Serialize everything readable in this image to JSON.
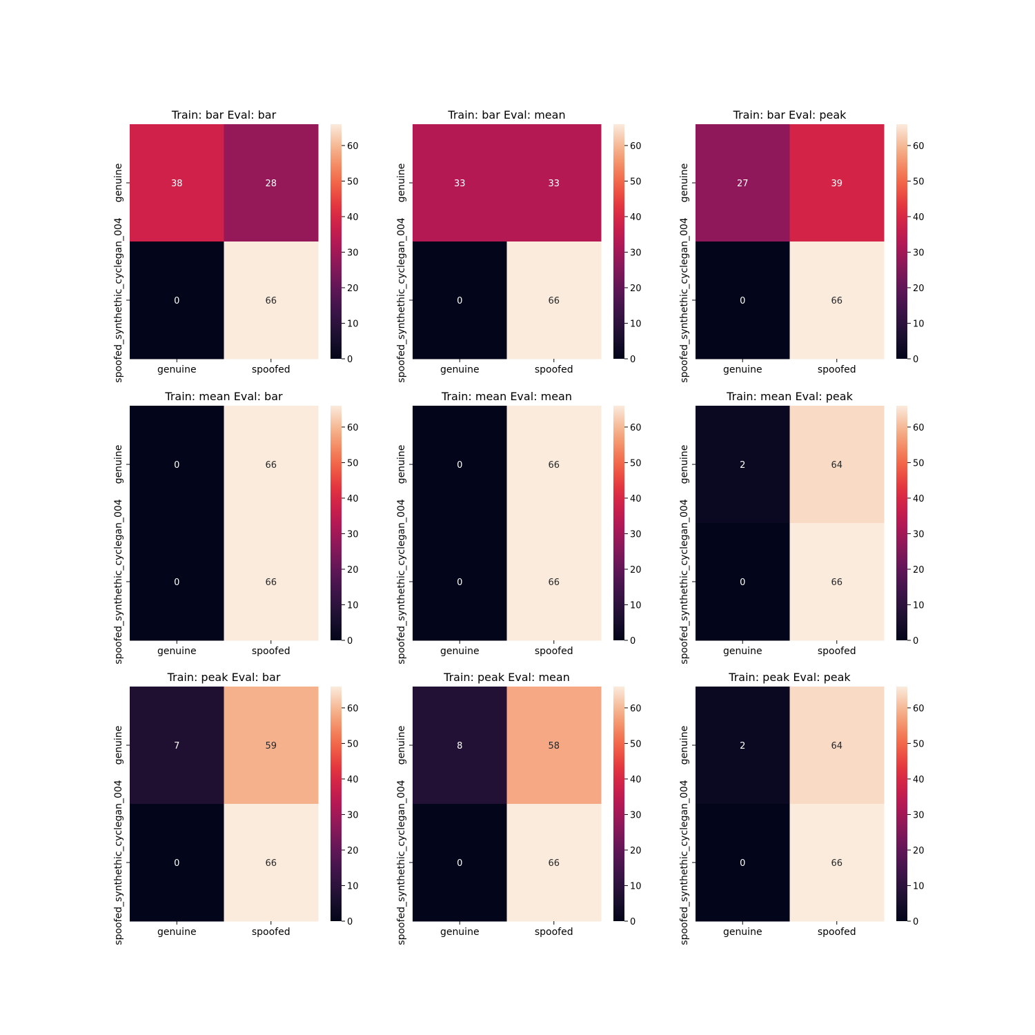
{
  "chart_data": [
    {
      "type": "heatmap",
      "title": "Train: bar Eval: bar",
      "x_tick_labels": [
        "genuine",
        "spoofed"
      ],
      "y_tick_labels": [
        "genuine",
        "spoofed_synthethic_cyclegan_004"
      ],
      "values": [
        [
          38,
          28
        ],
        [
          0,
          66
        ]
      ],
      "colorbar": {
        "min": 0,
        "max": 66,
        "ticks": [
          0,
          10,
          20,
          30,
          40,
          50,
          60
        ],
        "colormap": "rocket"
      }
    },
    {
      "type": "heatmap",
      "title": "Train: bar Eval: mean",
      "x_tick_labels": [
        "genuine",
        "spoofed"
      ],
      "y_tick_labels": [
        "genuine",
        "spoofed_synthethic_cyclegan_004"
      ],
      "values": [
        [
          33,
          33
        ],
        [
          0,
          66
        ]
      ],
      "colorbar": {
        "min": 0,
        "max": 66,
        "ticks": [
          0,
          10,
          20,
          30,
          40,
          50,
          60
        ],
        "colormap": "rocket"
      }
    },
    {
      "type": "heatmap",
      "title": "Train: bar Eval: peak",
      "x_tick_labels": [
        "genuine",
        "spoofed"
      ],
      "y_tick_labels": [
        "genuine",
        "spoofed_synthethic_cyclegan_004"
      ],
      "values": [
        [
          27,
          39
        ],
        [
          0,
          66
        ]
      ],
      "colorbar": {
        "min": 0,
        "max": 66,
        "ticks": [
          0,
          10,
          20,
          30,
          40,
          50,
          60
        ],
        "colormap": "rocket"
      }
    },
    {
      "type": "heatmap",
      "title": "Train: mean Eval: bar",
      "x_tick_labels": [
        "genuine",
        "spoofed"
      ],
      "y_tick_labels": [
        "genuine",
        "spoofed_synthethic_cyclegan_004"
      ],
      "values": [
        [
          0,
          66
        ],
        [
          0,
          66
        ]
      ],
      "colorbar": {
        "min": 0,
        "max": 66,
        "ticks": [
          0,
          10,
          20,
          30,
          40,
          50,
          60
        ],
        "colormap": "rocket"
      }
    },
    {
      "type": "heatmap",
      "title": "Train: mean Eval: mean",
      "x_tick_labels": [
        "genuine",
        "spoofed"
      ],
      "y_tick_labels": [
        "genuine",
        "spoofed_synthethic_cyclegan_004"
      ],
      "values": [
        [
          0,
          66
        ],
        [
          0,
          66
        ]
      ],
      "colorbar": {
        "min": 0,
        "max": 66,
        "ticks": [
          0,
          10,
          20,
          30,
          40,
          50,
          60
        ],
        "colormap": "rocket"
      }
    },
    {
      "type": "heatmap",
      "title": "Train: mean Eval: peak",
      "x_tick_labels": [
        "genuine",
        "spoofed"
      ],
      "y_tick_labels": [
        "genuine",
        "spoofed_synthethic_cyclegan_004"
      ],
      "values": [
        [
          2,
          64
        ],
        [
          0,
          66
        ]
      ],
      "colorbar": {
        "min": 0,
        "max": 66,
        "ticks": [
          0,
          10,
          20,
          30,
          40,
          50,
          60
        ],
        "colormap": "rocket"
      }
    },
    {
      "type": "heatmap",
      "title": "Train: peak Eval: bar",
      "x_tick_labels": [
        "genuine",
        "spoofed"
      ],
      "y_tick_labels": [
        "genuine",
        "spoofed_synthethic_cyclegan_004"
      ],
      "values": [
        [
          7,
          59
        ],
        [
          0,
          66
        ]
      ],
      "colorbar": {
        "min": 0,
        "max": 66,
        "ticks": [
          0,
          10,
          20,
          30,
          40,
          50,
          60
        ],
        "colormap": "rocket"
      }
    },
    {
      "type": "heatmap",
      "title": "Train: peak Eval: mean",
      "x_tick_labels": [
        "genuine",
        "spoofed"
      ],
      "y_tick_labels": [
        "genuine",
        "spoofed_synthethic_cyclegan_004"
      ],
      "values": [
        [
          8,
          58
        ],
        [
          0,
          66
        ]
      ],
      "colorbar": {
        "min": 0,
        "max": 66,
        "ticks": [
          0,
          10,
          20,
          30,
          40,
          50,
          60
        ],
        "colormap": "rocket"
      }
    },
    {
      "type": "heatmap",
      "title": "Train: peak Eval: peak",
      "x_tick_labels": [
        "genuine",
        "spoofed"
      ],
      "y_tick_labels": [
        "genuine",
        "spoofed_synthethic_cyclegan_004"
      ],
      "values": [
        [
          2,
          64
        ],
        [
          0,
          66
        ]
      ],
      "colorbar": {
        "min": 0,
        "max": 66,
        "ticks": [
          0,
          10,
          20,
          30,
          40,
          50,
          60
        ],
        "colormap": "rocket"
      }
    }
  ]
}
